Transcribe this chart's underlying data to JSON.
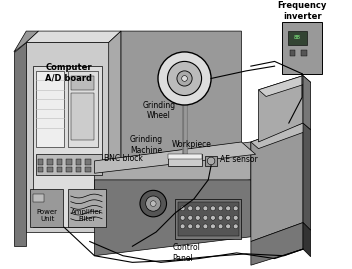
{
  "bg_color": "#ffffff",
  "labels": {
    "frequency_inverter": "Frequency\ninverter",
    "computer": "Computer\nA/D board",
    "grinding_wheel": "Grinding\nWheel",
    "grinding_machine": "Grinding\nMachine",
    "workpiece": "Workpiece",
    "ae_sensor": "AE sensor",
    "bnc_block": "BNC block",
    "power_unit": "Power\nUnit",
    "amplifier_filter": "Amplifier\nFilter",
    "control_panel": "Control\nPanel"
  },
  "colors": {
    "c1": "#333333",
    "c2": "#555555",
    "c3": "#777777",
    "c4": "#999999",
    "c5": "#aaaaaa",
    "c6": "#bbbbbb",
    "c7": "#cccccc",
    "c8": "#dddddd",
    "c9": "#eeeeee",
    "black": "#000000",
    "white": "#ffffff"
  }
}
